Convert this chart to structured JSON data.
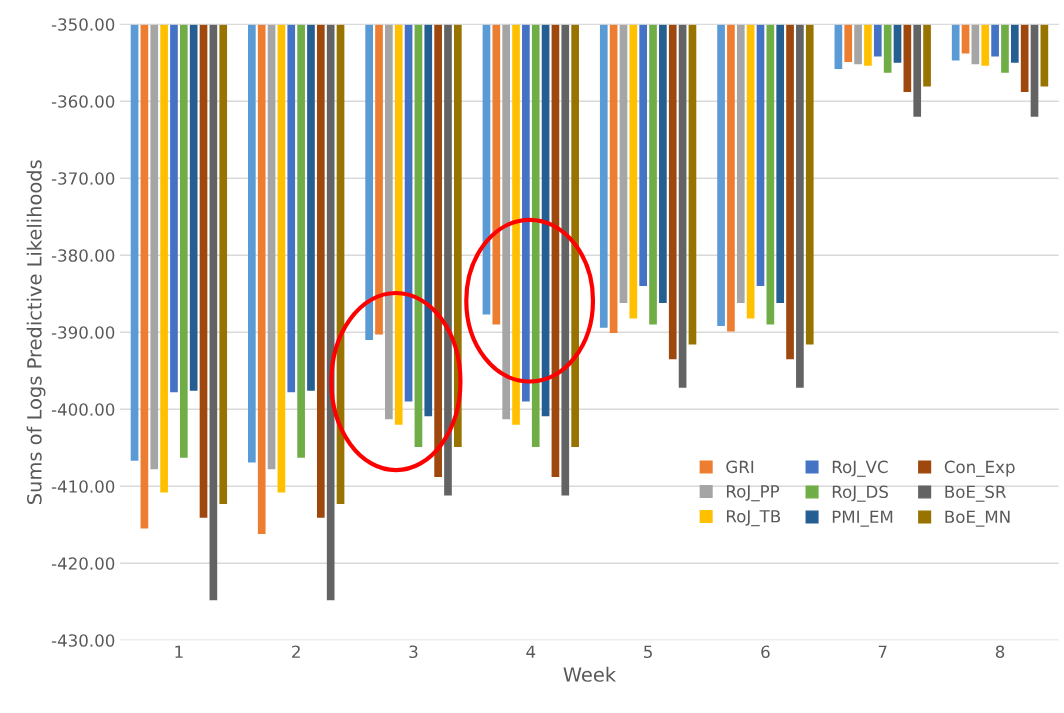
{
  "chart_data": {
    "type": "bar",
    "xlabel": "Week",
    "ylabel": "Sums of Logs Predictive Likelihoods",
    "categories": [
      "1",
      "2",
      "3",
      "4",
      "5",
      "6",
      "7",
      "8"
    ],
    "series": [
      {
        "color": "#5b9bd5",
        "values": [
          -406.7,
          -406.9,
          -391.0,
          -387.7,
          -389.4,
          -389.2,
          -355.8,
          -354.7
        ]
      },
      {
        "name": "GRI",
        "color": "#ed7d31",
        "values": [
          -415.5,
          -416.2,
          -390.3,
          -389.0,
          -390.1,
          -389.9,
          -354.9,
          -353.8
        ]
      },
      {
        "name": "RoJ_PP",
        "color": "#a5a5a5",
        "values": [
          -407.8,
          -407.8,
          -401.3,
          -401.3,
          -386.2,
          -386.2,
          -355.2,
          -355.2
        ]
      },
      {
        "name": "RoJ_TB",
        "color": "#ffc000",
        "values": [
          -410.8,
          -410.8,
          -402.0,
          -402.0,
          -388.2,
          -388.2,
          -355.4,
          -355.4
        ]
      },
      {
        "name": "RoJ_VC",
        "color": "#4472c4",
        "values": [
          -397.8,
          -397.8,
          -399.0,
          -399.0,
          -384.0,
          -384.0,
          -354.2,
          -354.2
        ]
      },
      {
        "name": "RoJ_DS",
        "color": "#70ad47",
        "values": [
          -406.3,
          -406.3,
          -404.9,
          -404.9,
          -389.0,
          -389.0,
          -356.3,
          -356.3
        ]
      },
      {
        "name": "PMI_EM",
        "color": "#255e91",
        "values": [
          -397.6,
          -397.6,
          -400.9,
          -400.9,
          -386.2,
          -386.2,
          -355.0,
          -355.0
        ]
      },
      {
        "name": "Con_Exp",
        "color": "#9e480e",
        "values": [
          -414.1,
          -414.1,
          -408.8,
          -408.8,
          -393.5,
          -393.5,
          -358.8,
          -358.8
        ]
      },
      {
        "name": "BoE_SR",
        "color": "#636363",
        "values": [
          -424.8,
          -424.8,
          -411.2,
          -411.2,
          -397.2,
          -397.2,
          -362.0,
          -362.0
        ]
      },
      {
        "name": "BoE_MN",
        "color": "#997300",
        "values": [
          -412.3,
          -412.3,
          -404.9,
          -404.9,
          -391.6,
          -391.6,
          -358.1,
          -358.1
        ]
      }
    ],
    "ylim": [
      -430,
      -350
    ],
    "yticks": [
      {
        "value": -430,
        "label": "-430.00"
      },
      {
        "value": -420,
        "label": "-420.00"
      },
      {
        "value": -410,
        "label": "-410.00"
      },
      {
        "value": -400,
        "label": "-400.00"
      },
      {
        "value": -390,
        "label": "-390.00"
      },
      {
        "value": -380,
        "label": "-380.00"
      },
      {
        "value": -370,
        "label": "-370.00"
      },
      {
        "value": -360,
        "label": "-360.00"
      },
      {
        "value": -350,
        "label": "-350.00"
      }
    ],
    "grid": "y",
    "legend": "lower right"
  }
}
